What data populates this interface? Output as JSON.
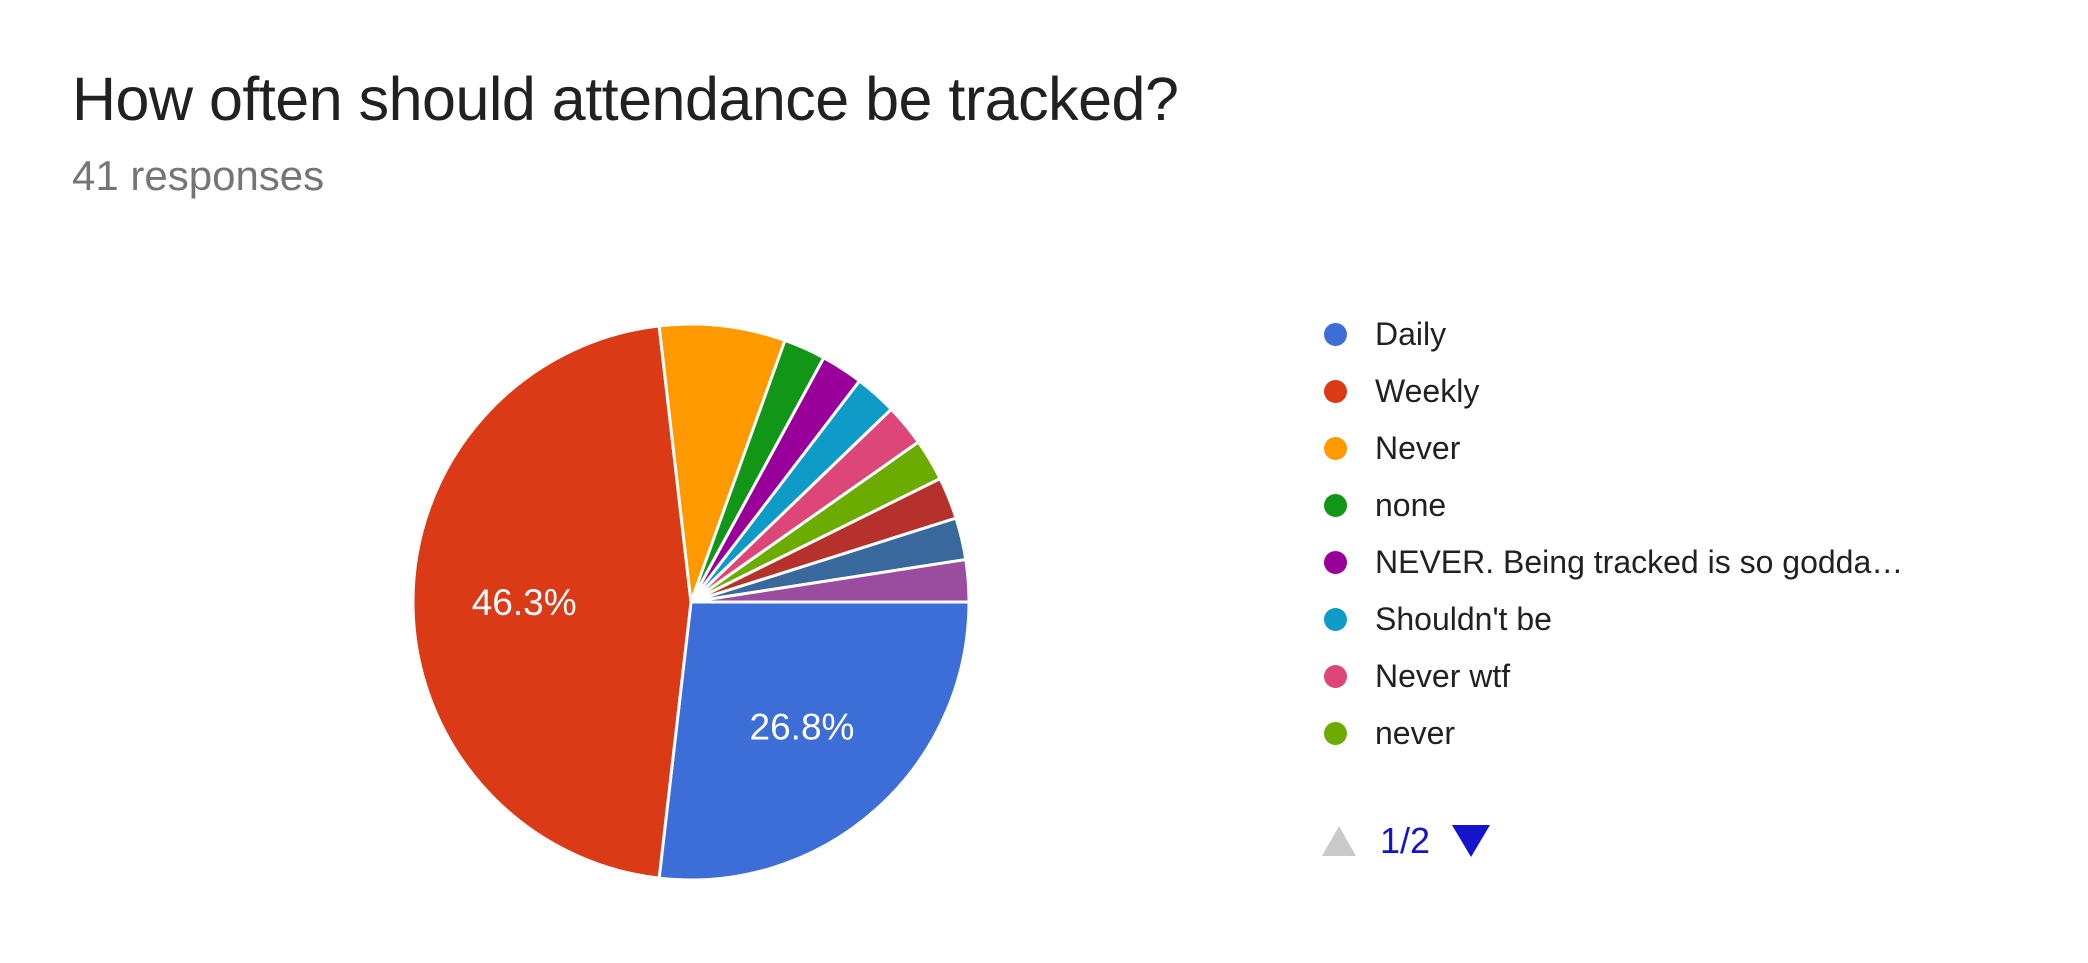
{
  "header": {
    "title": "How often should attendance be tracked?",
    "subtitle": "41 responses"
  },
  "chart_data": {
    "type": "pie",
    "title": "How often should attendance be tracked?",
    "total_responses": 41,
    "start_angle_deg_clockwise_from_top": 90,
    "direction": "clockwise",
    "slice_border_color": "#ffffff",
    "slices": [
      {
        "label": "Daily",
        "votes": 11,
        "percent": 26.8,
        "percent_label": "26.8%",
        "color": "#3D6DD6",
        "in_visible_legend": true
      },
      {
        "label": "Weekly",
        "votes": 19,
        "percent": 46.3,
        "percent_label": "46.3%",
        "color": "#DB3A17",
        "in_visible_legend": true
      },
      {
        "label": "Never",
        "votes": 3,
        "percent": 7.3,
        "percent_label": "",
        "color": "#FF9900",
        "in_visible_legend": true
      },
      {
        "label": "none",
        "votes": 1,
        "percent": 2.4,
        "percent_label": "",
        "color": "#129618",
        "in_visible_legend": true
      },
      {
        "label": "NEVER. Being tracked is so godda…",
        "votes": 1,
        "percent": 2.4,
        "percent_label": "",
        "color": "#990099",
        "in_visible_legend": true
      },
      {
        "label": "Shouldn't be",
        "votes": 1,
        "percent": 2.4,
        "percent_label": "",
        "color": "#0F9BC8",
        "in_visible_legend": true
      },
      {
        "label": "Never wtf",
        "votes": 1,
        "percent": 2.4,
        "percent_label": "",
        "color": "#DC4679",
        "in_visible_legend": true
      },
      {
        "label": "never",
        "votes": 1,
        "percent": 2.4,
        "percent_label": "",
        "color": "#6CAB00",
        "in_visible_legend": true
      },
      {
        "label": "",
        "votes": 1,
        "percent": 2.4,
        "percent_label": "",
        "color": "#B7312C",
        "in_visible_legend": false
      },
      {
        "label": "",
        "votes": 1,
        "percent": 2.4,
        "percent_label": "",
        "color": "#38689C",
        "in_visible_legend": false
      },
      {
        "label": "",
        "votes": 1,
        "percent": 2.4,
        "percent_label": "",
        "color": "#9A4C9E",
        "in_visible_legend": false
      }
    ],
    "legend_position": "right",
    "percent_label_radius_ratio": 0.6
  },
  "legend": {
    "pager": {
      "label": "1/2",
      "up_icon": "triangle-up",
      "down_icon": "triangle-down",
      "up_color": "#C9C9C9",
      "down_color": "#1414CC",
      "label_color": "#1414CC"
    }
  },
  "colors": {
    "background": "#ffffff",
    "title": "#212121",
    "subtitle": "#757575",
    "slice_label_text": "#ffffff",
    "legend_text": "#212121"
  }
}
